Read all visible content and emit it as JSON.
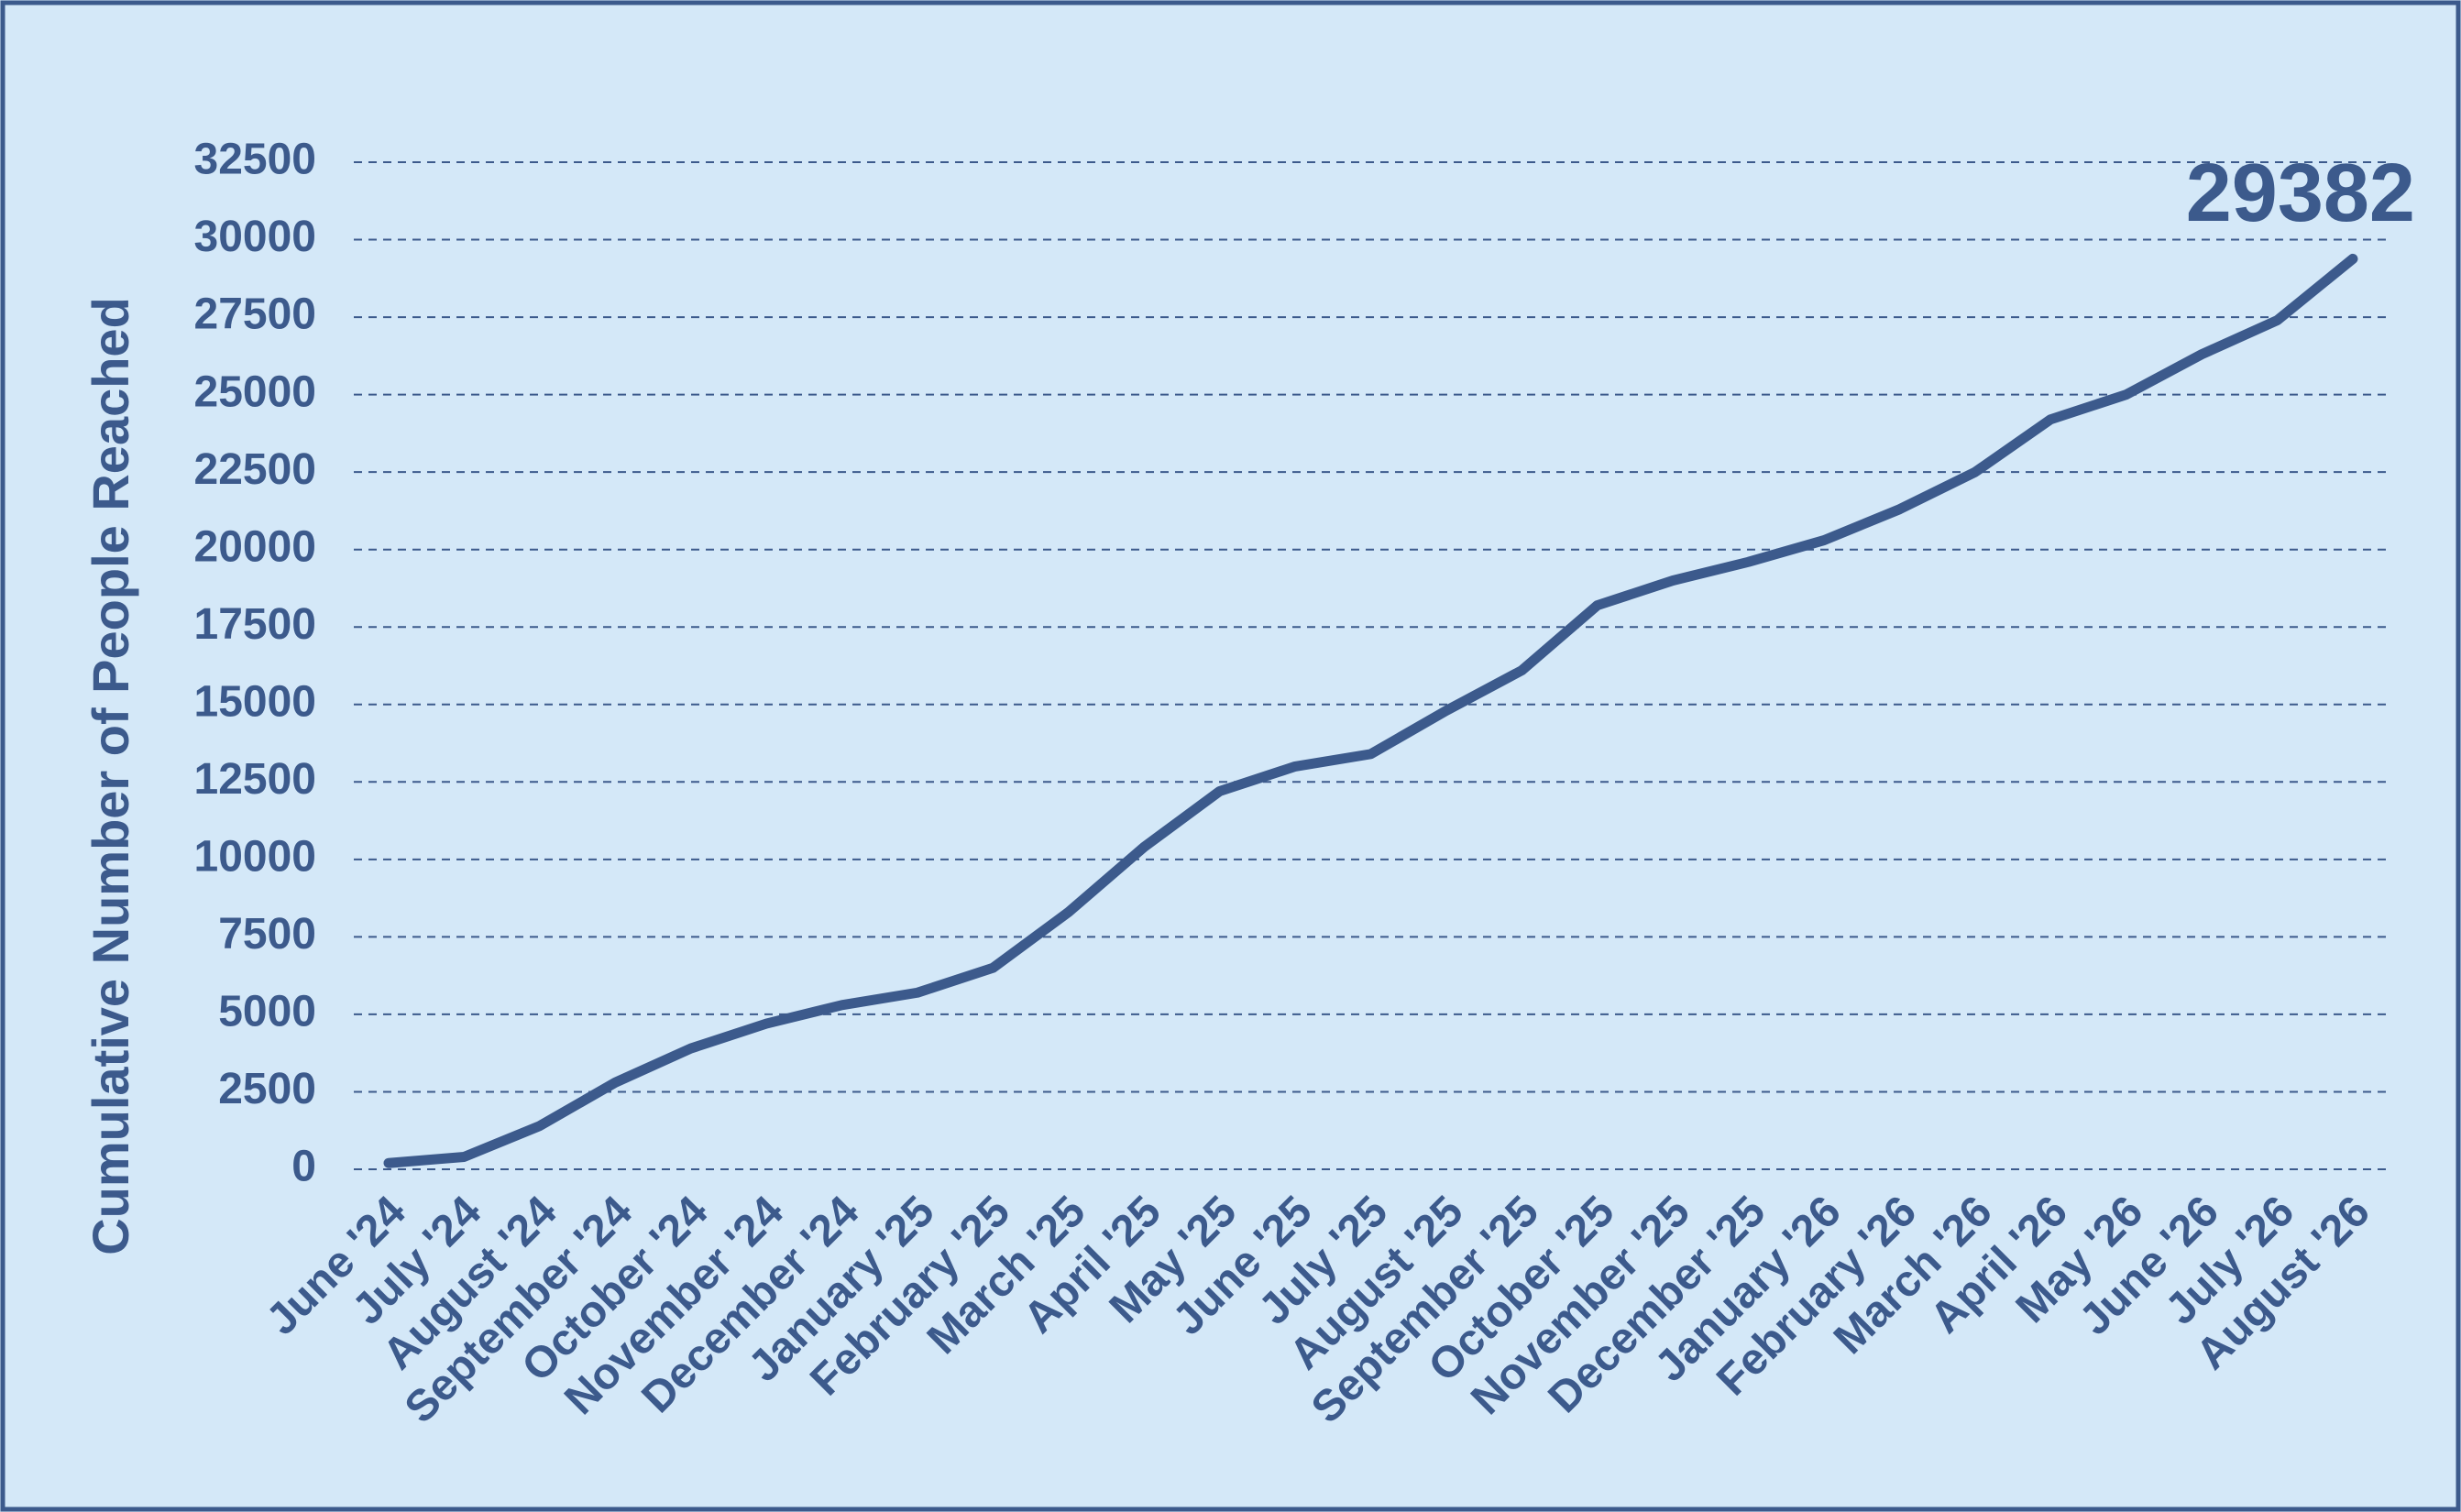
{
  "chart_data": {
    "type": "line",
    "y_label": "Cumulative Number of People Reached",
    "categories": [
      "June '24",
      "July '24",
      "August '24",
      "September '24",
      "October '24",
      "November '24",
      "December '24",
      "January '25",
      "February '25",
      "March '25",
      "April '25",
      "May '25",
      "June '25",
      "July '25",
      "August '25",
      "September '25",
      "October '25",
      "November '25",
      "December '25",
      "January '26",
      "February '26",
      "March '26",
      "April '26",
      "May '26",
      "June '26",
      "July '26",
      "August '26"
    ],
    "values": [
      200,
      400,
      1400,
      2800,
      3900,
      4700,
      5300,
      5700,
      6500,
      8300,
      10400,
      12200,
      13000,
      13400,
      14800,
      16100,
      18200,
      19000,
      19600,
      20300,
      21300,
      22500,
      24200,
      25000,
      26300,
      27400,
      29382
    ],
    "color": "#3c5a8c",
    "ylim": [
      0,
      32500
    ],
    "yticks": [
      0,
      2500,
      5000,
      7500,
      10000,
      12500,
      15000,
      17500,
      20000,
      22500,
      25000,
      27500,
      30000,
      32500
    ],
    "grid": true
  }
}
